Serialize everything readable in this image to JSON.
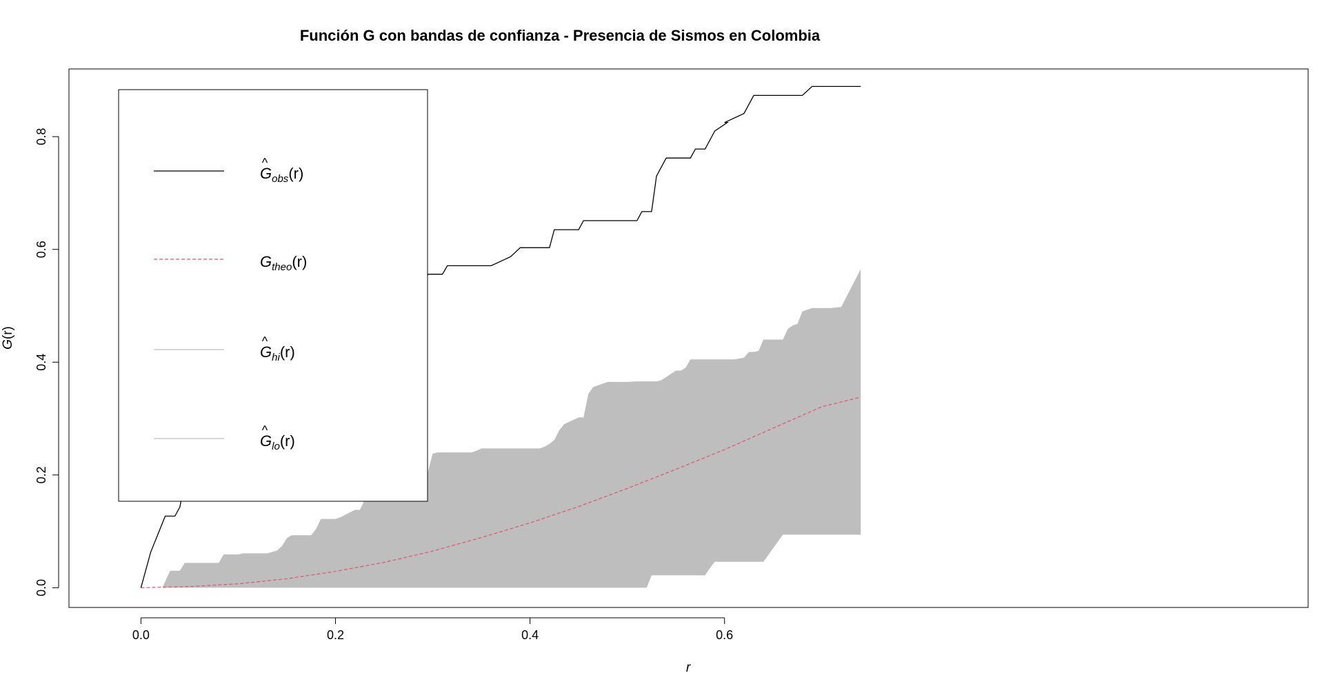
{
  "chart_data": {
    "type": "line",
    "title": "Función G con bandas de confianza - Presencia de Sismos en Colombia",
    "xlabel": "r",
    "ylabel": "G(r)",
    "ylabel_parts": {
      "base": "G",
      "arg": "(r)"
    },
    "xlim": [
      -0.074,
      1.2
    ],
    "ylim": [
      -0.035,
      0.92
    ],
    "x_ticks": [
      0.0,
      0.2,
      0.4,
      0.6
    ],
    "x_tick_labels": [
      "0.0",
      "0.2",
      "0.4",
      "0.6"
    ],
    "y_ticks": [
      0.0,
      0.2,
      0.4,
      0.6,
      0.8
    ],
    "y_tick_labels": [
      "0.0",
      "0.2",
      "0.4",
      "0.6",
      "0.8"
    ],
    "grid": false,
    "legend_placement": "top-left",
    "colors": {
      "obs": "#000000",
      "theo": "#DF536B",
      "band": "#BEBEBE",
      "legend_hi_lo": "#BEBEBE"
    },
    "legend": [
      {
        "key": "obs",
        "base": "G",
        "hat": true,
        "sub": "obs",
        "arg": "(r)",
        "style": "solid",
        "color": "#000000"
      },
      {
        "key": "theo",
        "base": "G",
        "hat": false,
        "sub": "theo",
        "arg": "(r)",
        "style": "dashed",
        "color": "#DF536B"
      },
      {
        "key": "hi",
        "base": "G",
        "hat": true,
        "sub": "hi",
        "arg": "(r)",
        "style": "solid",
        "color": "#BEBEBE"
      },
      {
        "key": "lo",
        "base": "G",
        "hat": true,
        "sub": "lo",
        "arg": "(r)",
        "style": "solid",
        "color": "#BEBEBE"
      }
    ],
    "series": [
      {
        "key": "obs",
        "x": [
          0.0,
          0.01,
          0.025,
          0.035,
          0.04,
          0.047,
          0.063,
          0.07,
          0.13,
          0.138,
          0.149,
          0.155,
          0.17,
          0.175,
          0.185,
          0.19,
          0.2,
          0.205,
          0.215,
          0.22,
          0.23,
          0.235,
          0.24,
          0.245,
          0.255,
          0.26,
          0.29,
          0.295,
          0.31,
          0.315,
          0.35,
          0.36,
          0.38,
          0.39,
          0.42,
          0.425,
          0.45,
          0.455,
          0.51,
          0.515,
          0.525,
          0.53,
          0.54,
          0.54,
          0.565,
          0.57,
          0.58,
          0.59,
          0.603,
          0.6,
          0.62,
          0.63,
          0.68,
          0.69,
          0.74
        ],
        "y": [
          0.0,
          0.063,
          0.127,
          0.127,
          0.143,
          0.206,
          0.206,
          0.222,
          0.222,
          0.254,
          0.254,
          0.27,
          0.27,
          0.302,
          0.302,
          0.317,
          0.317,
          0.333,
          0.333,
          0.349,
          0.349,
          0.381,
          0.444,
          0.46,
          0.524,
          0.524,
          0.524,
          0.556,
          0.556,
          0.571,
          0.571,
          0.571,
          0.587,
          0.603,
          0.603,
          0.635,
          0.635,
          0.651,
          0.651,
          0.667,
          0.667,
          0.73,
          0.762,
          0.762,
          0.762,
          0.778,
          0.778,
          0.81,
          0.825,
          0.825,
          0.841,
          0.873,
          0.873,
          0.889,
          0.889
        ]
      },
      {
        "key": "theo",
        "x": [
          0.0,
          0.05,
          0.1,
          0.15,
          0.2,
          0.25,
          0.3,
          0.35,
          0.4,
          0.45,
          0.5,
          0.55,
          0.6,
          0.65,
          0.7,
          0.74
        ],
        "y": [
          0.0,
          0.002,
          0.007,
          0.016,
          0.029,
          0.045,
          0.065,
          0.089,
          0.115,
          0.144,
          0.176,
          0.21,
          0.245,
          0.283,
          0.321,
          0.338
        ]
      },
      {
        "key": "hi",
        "x": [
          0.022,
          0.03,
          0.04,
          0.045,
          0.08,
          0.085,
          0.1,
          0.105,
          0.125,
          0.13,
          0.14,
          0.145,
          0.15,
          0.155,
          0.175,
          0.18,
          0.185,
          0.2,
          0.205,
          0.22,
          0.225,
          0.23,
          0.235,
          0.27,
          0.275,
          0.28,
          0.285,
          0.29,
          0.295,
          0.3,
          0.305,
          0.34,
          0.345,
          0.35,
          0.355,
          0.41,
          0.415,
          0.42,
          0.425,
          0.43,
          0.435,
          0.45,
          0.455,
          0.46,
          0.465,
          0.48,
          0.5,
          0.51,
          0.515,
          0.52,
          0.53,
          0.535,
          0.55,
          0.555,
          0.56,
          0.565,
          0.6,
          0.61,
          0.62,
          0.625,
          0.63,
          0.635,
          0.64,
          0.645,
          0.66,
          0.665,
          0.67,
          0.675,
          0.68,
          0.69,
          0.71,
          0.72,
          0.74
        ],
        "y": [
          0.0,
          0.03,
          0.03,
          0.044,
          0.044,
          0.059,
          0.059,
          0.061,
          0.061,
          0.061,
          0.066,
          0.074,
          0.088,
          0.093,
          0.093,
          0.104,
          0.122,
          0.122,
          0.125,
          0.138,
          0.138,
          0.155,
          0.17,
          0.17,
          0.172,
          0.18,
          0.198,
          0.205,
          0.205,
          0.238,
          0.24,
          0.24,
          0.243,
          0.247,
          0.247,
          0.247,
          0.25,
          0.255,
          0.262,
          0.279,
          0.29,
          0.302,
          0.302,
          0.344,
          0.356,
          0.365,
          0.365,
          0.366,
          0.366,
          0.366,
          0.366,
          0.368,
          0.385,
          0.385,
          0.39,
          0.405,
          0.405,
          0.405,
          0.408,
          0.418,
          0.418,
          0.42,
          0.44,
          0.44,
          0.44,
          0.459,
          0.465,
          0.468,
          0.49,
          0.496,
          0.496,
          0.498,
          0.565
        ]
      },
      {
        "key": "lo",
        "x": [
          0.022,
          0.51,
          0.52,
          0.525,
          0.58,
          0.585,
          0.59,
          0.64,
          0.645,
          0.65,
          0.66,
          0.665,
          0.74
        ],
        "y": [
          0.0,
          0.0,
          0.0,
          0.022,
          0.022,
          0.035,
          0.046,
          0.046,
          0.058,
          0.07,
          0.094,
          0.094,
          0.094
        ]
      }
    ]
  }
}
